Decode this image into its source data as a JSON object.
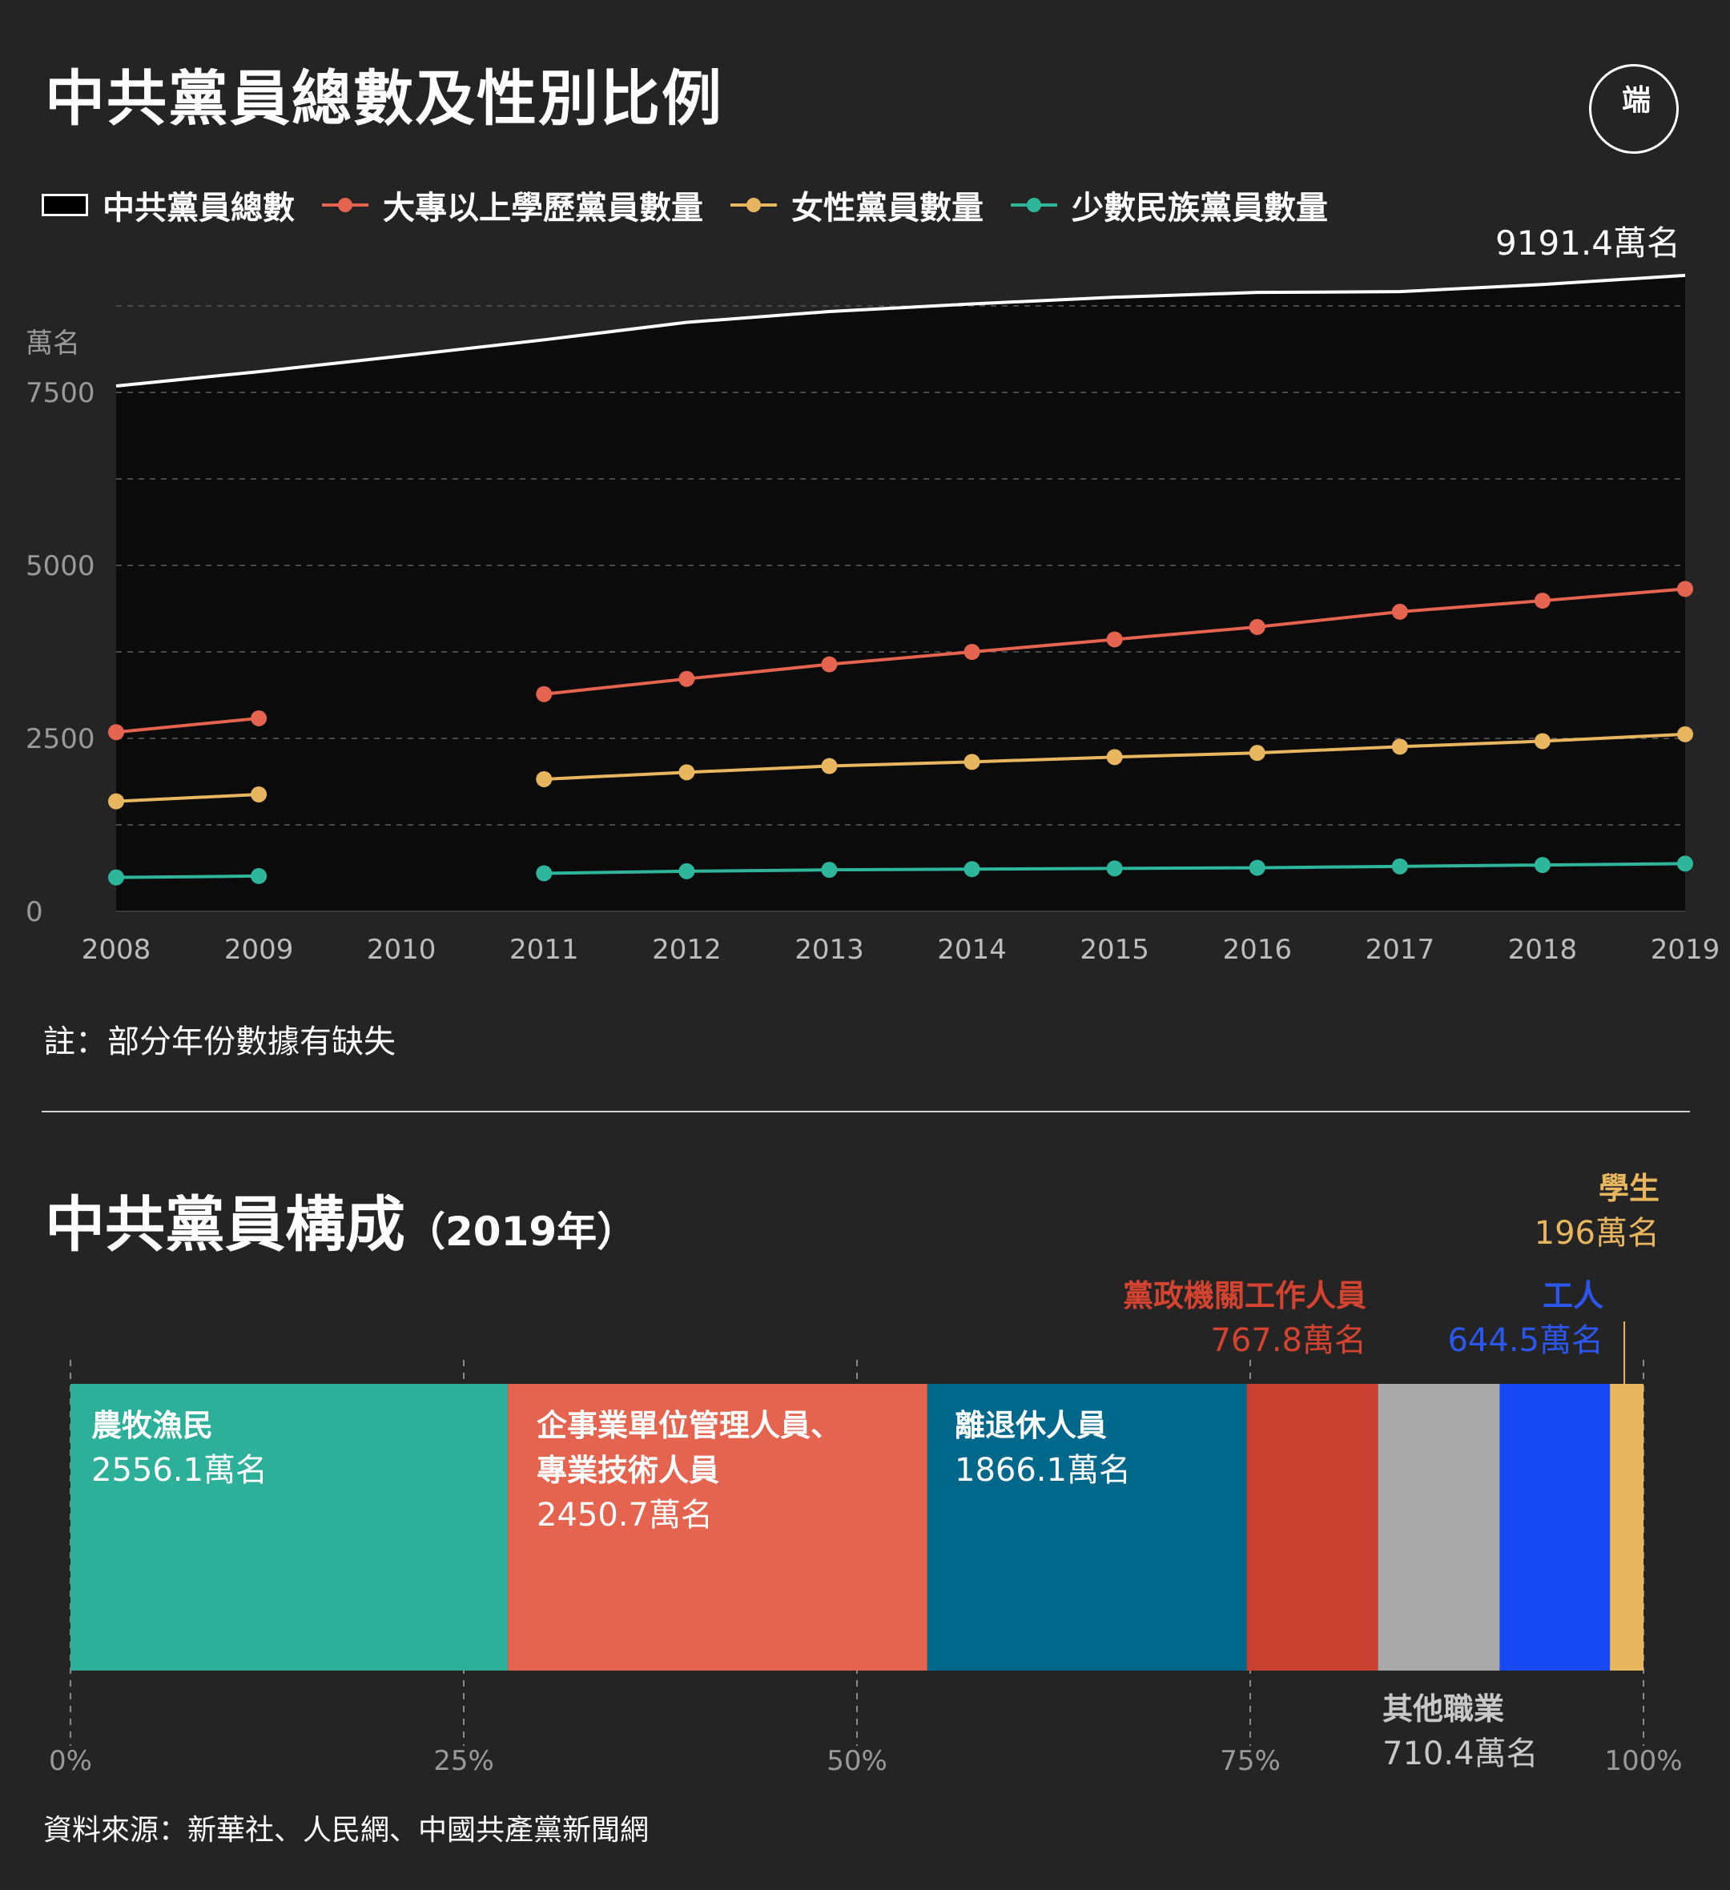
{
  "header": {
    "title": "中共黨員總數及性別比例",
    "logo_text": "端",
    "logo_icon": "initium-logo"
  },
  "legend": {
    "items": [
      {
        "label": "中共黨員總數",
        "color": "#ffffff",
        "kind": "area"
      },
      {
        "label": "大專以上學歷黨員數量",
        "color": "#e5644f",
        "kind": "line"
      },
      {
        "label": "女性黨員數量",
        "color": "#e7b65f",
        "kind": "line"
      },
      {
        "label": "少數民族黨員數量",
        "color": "#2db69b",
        "kind": "line"
      }
    ]
  },
  "line_chart_notes": {
    "total_label": "9191.4萬名",
    "note": "註：部分年份數據有缺失"
  },
  "composition": {
    "title": "中共黨員構成",
    "title_suffix": "（2019年）",
    "source": "資料來源：新華社、人民網、中國共產黨新聞網",
    "segments": [
      {
        "label": "農牧漁民",
        "value_text": "2556.1萬名",
        "color": "#2db09a",
        "label_color": "#ffffff"
      },
      {
        "label": "企事業單位管理人員、專業技術人員",
        "label_line1": "企事業單位管理人員、",
        "label_line2": "專業技術人員",
        "value_text": "2450.7萬名",
        "color": "#e5644f",
        "label_color": "#ffffff"
      },
      {
        "label": "離退休人員",
        "value_text": "1866.1萬名",
        "color": "#00688b",
        "label_color": "#ffffff"
      },
      {
        "label": "黨政機關工作人員",
        "value_text": "767.8萬名",
        "color": "#c94031",
        "label_color": "#d4432f"
      },
      {
        "label": "其他職業",
        "value_text": "710.4萬名",
        "color": "#a9a9a9",
        "label_color": "#c8c8c8"
      },
      {
        "label": "工人",
        "value_text": "644.5萬名",
        "color": "#1749f5",
        "label_color": "#2b57f0"
      },
      {
        "label": "學生",
        "value_text": "196萬名",
        "color": "#e7b65f",
        "label_color": "#e7b65f"
      }
    ]
  },
  "chart_data": [
    {
      "type": "line",
      "title": "中共黨員總數及性別比例",
      "ylabel": "萬名",
      "x": [
        "2008",
        "2009",
        "2010",
        "2011",
        "2012",
        "2013",
        "2014",
        "2015",
        "2016",
        "2017",
        "2018",
        "2019"
      ],
      "ylim": [
        0,
        9300
      ],
      "y_ticks": [
        "0",
        "2500",
        "5000",
        "7500"
      ],
      "grid": true,
      "legend": "top",
      "series": [
        {
          "name": "中共黨員總數",
          "color": "#ffffff",
          "kind": "area",
          "values": [
            7593.1,
            7799.5,
            8026.9,
            8260.2,
            8512.7,
            8668.6,
            8779.3,
            8875.8,
            8944.7,
            8956.4,
            9059.4,
            9191.4
          ]
        },
        {
          "name": "大專以上學歷黨員數量",
          "color": "#e5644f",
          "values": [
            2590,
            2790,
            null,
            3140,
            3360,
            3570,
            3750,
            3930,
            4110,
            4330,
            4490,
            4660
          ]
        },
        {
          "name": "女性黨員數量",
          "color": "#e7b65f",
          "values": [
            1590,
            1690,
            null,
            1910,
            2010,
            2100,
            2160,
            2230,
            2290,
            2380,
            2460,
            2560
          ]
        },
        {
          "name": "少數民族黨員數量",
          "color": "#2db69b",
          "values": [
            490,
            510,
            null,
            550,
            580,
            600,
            610,
            620,
            630,
            650,
            670,
            690
          ]
        }
      ],
      "annotations": [
        "9191.4萬名"
      ]
    },
    {
      "type": "bar",
      "title": "中共黨員構成（2019年）",
      "orientation": "stacked-horizontal-100%",
      "x_ticks": [
        "0%",
        "25%",
        "50%",
        "75%",
        "100%"
      ],
      "categories": [
        "農牧漁民",
        "企事業單位管理人員、專業技術人員",
        "離退休人員",
        "黨政機關工作人員",
        "其他職業",
        "工人",
        "學生"
      ],
      "values": [
        2556.1,
        2450.7,
        1866.1,
        767.8,
        710.4,
        644.5,
        196
      ],
      "unit": "萬名"
    }
  ]
}
